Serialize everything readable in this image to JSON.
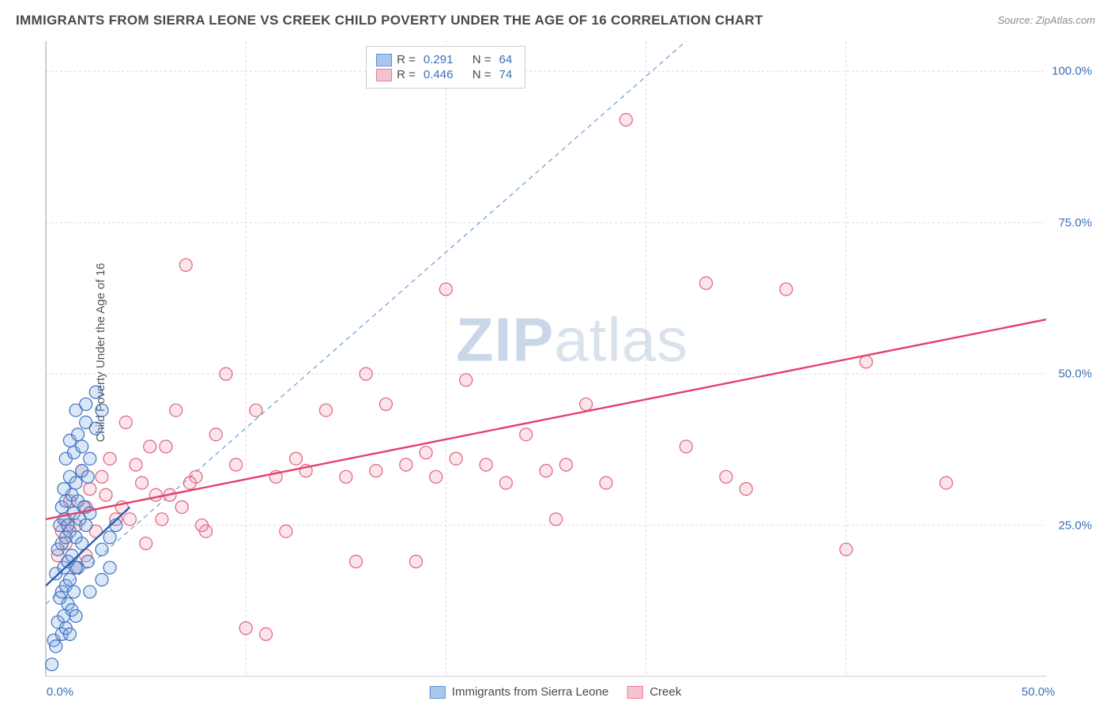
{
  "title": "IMMIGRANTS FROM SIERRA LEONE VS CREEK CHILD POVERTY UNDER THE AGE OF 16 CORRELATION CHART",
  "source_label": "Source: ZipAtlas.com",
  "ylabel": "Child Poverty Under the Age of 16",
  "watermark": {
    "bold": "ZIP",
    "rest": "atlas"
  },
  "chart": {
    "type": "scatter",
    "xlim": [
      0,
      50
    ],
    "ylim": [
      0,
      105
    ],
    "xticks": [
      0,
      50
    ],
    "xtick_labels": [
      "0.0%",
      "50.0%"
    ],
    "yticks": [
      25,
      50,
      75,
      100
    ],
    "ytick_labels": [
      "25.0%",
      "50.0%",
      "75.0%",
      "100.0%"
    ],
    "grid_color": "#d9d9d9",
    "axis_color": "#bfbfbf",
    "background": "#ffffff",
    "tick_color": "#3b6fb6",
    "marker_radius": 8,
    "marker_stroke_width": 1.2,
    "marker_fill_opacity": 0.28,
    "trend_line_width": 2.4,
    "dashed_line": {
      "x1": 0,
      "y1": 12,
      "x2": 32,
      "y2": 105,
      "color": "#6a9bd8",
      "dash": "6 5",
      "width": 1.2
    }
  },
  "series": {
    "blue": {
      "label": "Immigrants from Sierra Leone",
      "swatch_fill": "#a9c7ec",
      "swatch_stroke": "#5a8fd6",
      "marker_fill": "#7fa8e0",
      "marker_stroke": "#3d72c4",
      "trend_color": "#2c5fb0",
      "R": "0.291",
      "N": "64",
      "trend": {
        "x1": 0,
        "y1": 15,
        "x2": 4.2,
        "y2": 28
      },
      "points": [
        [
          0.3,
          2
        ],
        [
          0.4,
          6
        ],
        [
          0.5,
          5
        ],
        [
          0.8,
          7
        ],
        [
          0.6,
          9
        ],
        [
          1.0,
          8
        ],
        [
          1.2,
          7
        ],
        [
          0.9,
          10
        ],
        [
          1.1,
          12
        ],
        [
          1.3,
          11
        ],
        [
          1.5,
          10
        ],
        [
          0.7,
          13
        ],
        [
          0.8,
          14
        ],
        [
          1.0,
          15
        ],
        [
          1.2,
          16
        ],
        [
          1.4,
          14
        ],
        [
          0.5,
          17
        ],
        [
          0.9,
          18
        ],
        [
          1.1,
          19
        ],
        [
          1.3,
          20
        ],
        [
          1.6,
          18
        ],
        [
          0.6,
          21
        ],
        [
          0.8,
          22
        ],
        [
          1.0,
          23
        ],
        [
          1.2,
          24
        ],
        [
          1.5,
          23
        ],
        [
          1.8,
          22
        ],
        [
          0.7,
          25
        ],
        [
          0.9,
          26
        ],
        [
          1.1,
          25
        ],
        [
          1.4,
          27
        ],
        [
          1.7,
          26
        ],
        [
          2.0,
          25
        ],
        [
          0.8,
          28
        ],
        [
          1.0,
          29
        ],
        [
          1.3,
          30
        ],
        [
          1.6,
          29
        ],
        [
          1.9,
          28
        ],
        [
          2.2,
          27
        ],
        [
          0.9,
          31
        ],
        [
          1.2,
          33
        ],
        [
          1.5,
          32
        ],
        [
          1.8,
          34
        ],
        [
          2.1,
          33
        ],
        [
          1.0,
          36
        ],
        [
          1.4,
          37
        ],
        [
          1.8,
          38
        ],
        [
          2.2,
          36
        ],
        [
          1.2,
          39
        ],
        [
          1.6,
          40
        ],
        [
          2.0,
          42
        ],
        [
          2.5,
          41
        ],
        [
          1.5,
          44
        ],
        [
          2.0,
          45
        ],
        [
          2.8,
          44
        ],
        [
          2.5,
          47
        ],
        [
          1.5,
          18
        ],
        [
          2.1,
          19
        ],
        [
          2.8,
          21
        ],
        [
          3.2,
          23
        ],
        [
          3.5,
          25
        ],
        [
          2.2,
          14
        ],
        [
          2.8,
          16
        ],
        [
          3.2,
          18
        ]
      ]
    },
    "pink": {
      "label": "Creek",
      "swatch_fill": "#f5c3cf",
      "swatch_stroke": "#e77a97",
      "marker_fill": "#f2a0b4",
      "marker_stroke": "#e0607f",
      "trend_color": "#e5416b",
      "R": "0.446",
      "N": "74",
      "trend": {
        "x1": 0,
        "y1": 26,
        "x2": 50,
        "y2": 59
      },
      "points": [
        [
          1.0,
          22
        ],
        [
          1.5,
          25
        ],
        [
          2.0,
          28
        ],
        [
          2.5,
          24
        ],
        [
          3.0,
          30
        ],
        [
          3.5,
          26
        ],
        [
          4.0,
          42
        ],
        [
          4.5,
          35
        ],
        [
          5.0,
          22
        ],
        [
          5.5,
          30
        ],
        [
          6.0,
          38
        ],
        [
          6.5,
          44
        ],
        [
          7.0,
          68
        ],
        [
          7.5,
          33
        ],
        [
          8.0,
          24
        ],
        [
          8.5,
          40
        ],
        [
          9.0,
          50
        ],
        [
          9.5,
          35
        ],
        [
          10.0,
          8
        ],
        [
          10.5,
          44
        ],
        [
          11.0,
          7
        ],
        [
          11.5,
          33
        ],
        [
          12.0,
          24
        ],
        [
          12.5,
          36
        ],
        [
          13.0,
          34
        ],
        [
          14.0,
          44
        ],
        [
          15.0,
          33
        ],
        [
          15.5,
          19
        ],
        [
          16.0,
          50
        ],
        [
          16.5,
          34
        ],
        [
          17.0,
          45
        ],
        [
          18.0,
          35
        ],
        [
          18.5,
          19
        ],
        [
          19.0,
          37
        ],
        [
          19.5,
          33
        ],
        [
          20.0,
          64
        ],
        [
          20.5,
          36
        ],
        [
          21.0,
          49
        ],
        [
          22.0,
          35
        ],
        [
          23.0,
          32
        ],
        [
          24.0,
          40
        ],
        [
          25.0,
          34
        ],
        [
          25.5,
          26
        ],
        [
          26.0,
          35
        ],
        [
          27.0,
          45
        ],
        [
          28.0,
          32
        ],
        [
          29.0,
          92
        ],
        [
          32.0,
          38
        ],
        [
          33.0,
          65
        ],
        [
          34.0,
          33
        ],
        [
          35.0,
          31
        ],
        [
          37.0,
          64
        ],
        [
          40.0,
          21
        ],
        [
          41.0,
          52
        ],
        [
          45.0,
          32
        ],
        [
          1.5,
          18
        ],
        [
          2.0,
          20
        ],
        [
          2.2,
          31
        ],
        [
          2.8,
          33
        ],
        [
          3.2,
          36
        ],
        [
          3.8,
          28
        ],
        [
          4.2,
          26
        ],
        [
          4.8,
          32
        ],
        [
          5.2,
          38
        ],
        [
          5.8,
          26
        ],
        [
          6.2,
          30
        ],
        [
          6.8,
          28
        ],
        [
          7.2,
          32
        ],
        [
          7.8,
          25
        ],
        [
          1.2,
          29
        ],
        [
          1.8,
          34
        ],
        [
          1.0,
          26
        ],
        [
          0.8,
          24
        ],
        [
          0.6,
          20
        ]
      ]
    }
  },
  "legend_top": {
    "R_label": "R =",
    "N_label": "N ="
  },
  "bottom_legend_order": [
    "blue",
    "pink"
  ]
}
